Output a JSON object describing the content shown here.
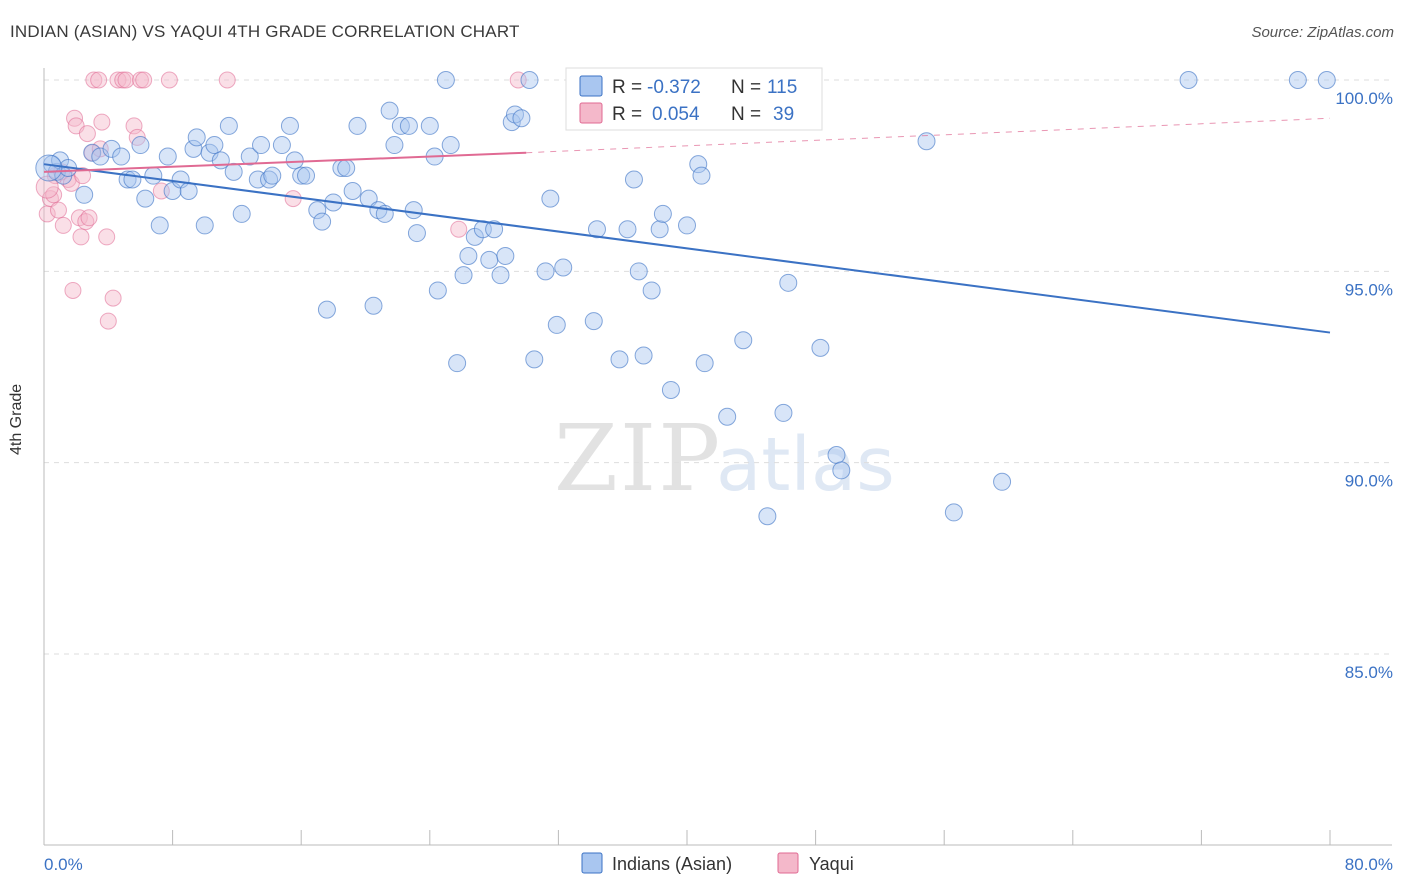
{
  "title": "INDIAN (ASIAN) VS YAQUI 4TH GRADE CORRELATION CHART",
  "source": "Source: ZipAtlas.com",
  "watermark": {
    "zip": "ZIP",
    "atlas": "atlas"
  },
  "colors": {
    "blue": "#3b72c4",
    "blue_fill": "#a9c6f0",
    "pink": "#e06a93",
    "pink_fill": "#f4b8ca",
    "grid": "#dddddd"
  },
  "legend": {
    "rows": [
      {
        "r_label": "R =",
        "r_value": "-0.372",
        "n_label": "N =",
        "n_value": "115"
      },
      {
        "r_label": "R =",
        "r_value": "0.054",
        "n_label": "N =",
        "n_value": "39"
      }
    ]
  },
  "chart_data": {
    "type": "scatter",
    "title": "INDIAN (ASIAN) VS YAQUI 4TH GRADE CORRELATION CHART",
    "xlabel": "",
    "ylabel": "4th Grade",
    "xlim": [
      0,
      80
    ],
    "ylim": [
      80.5,
      100.8
    ],
    "x_tick_labels": [
      "0.0%",
      "80.0%"
    ],
    "y_ticks": [
      85,
      90,
      95,
      100
    ],
    "y_tick_labels": [
      "85.0%",
      "90.0%",
      "95.0%",
      "100.0%"
    ],
    "legend_position": "top-center",
    "series": [
      {
        "name": "Indians (Asian)",
        "color": "#3b72c4",
        "r": -0.372,
        "n": 115,
        "trend": {
          "x": [
            0,
            80
          ],
          "y": [
            97.8,
            93.4
          ],
          "dashed_after": null
        },
        "points": [
          [
            0.5,
            97.8
          ],
          [
            0.8,
            97.6
          ],
          [
            1.0,
            97.9
          ],
          [
            1.2,
            97.5
          ],
          [
            1.5,
            97.7
          ],
          [
            2.5,
            97.0
          ],
          [
            3.0,
            98.1
          ],
          [
            3.5,
            98.0
          ],
          [
            4.2,
            98.2
          ],
          [
            4.8,
            98.0
          ],
          [
            5.2,
            97.4
          ],
          [
            5.5,
            97.4
          ],
          [
            6.0,
            98.3
          ],
          [
            6.3,
            96.9
          ],
          [
            6.8,
            97.5
          ],
          [
            7.2,
            96.2
          ],
          [
            7.7,
            98.0
          ],
          [
            8.0,
            97.1
          ],
          [
            8.5,
            97.4
          ],
          [
            9.0,
            97.1
          ],
          [
            9.3,
            98.2
          ],
          [
            9.5,
            98.5
          ],
          [
            10.0,
            96.2
          ],
          [
            10.3,
            98.1
          ],
          [
            10.6,
            98.3
          ],
          [
            11.0,
            97.9
          ],
          [
            11.5,
            98.8
          ],
          [
            11.8,
            97.6
          ],
          [
            12.3,
            96.5
          ],
          [
            12.8,
            98.0
          ],
          [
            13.3,
            97.4
          ],
          [
            13.5,
            98.3
          ],
          [
            14.0,
            97.4
          ],
          [
            14.2,
            97.5
          ],
          [
            14.8,
            98.3
          ],
          [
            15.3,
            98.8
          ],
          [
            15.6,
            97.9
          ],
          [
            16.0,
            97.5
          ],
          [
            16.3,
            97.5
          ],
          [
            17.0,
            96.6
          ],
          [
            17.3,
            96.3
          ],
          [
            17.6,
            94.0
          ],
          [
            18.0,
            96.8
          ],
          [
            18.5,
            97.7
          ],
          [
            18.8,
            97.7
          ],
          [
            19.2,
            97.1
          ],
          [
            19.5,
            98.8
          ],
          [
            20.2,
            96.9
          ],
          [
            20.5,
            94.1
          ],
          [
            20.8,
            96.6
          ],
          [
            21.2,
            96.5
          ],
          [
            21.5,
            99.2
          ],
          [
            21.8,
            98.3
          ],
          [
            22.2,
            98.8
          ],
          [
            22.7,
            98.8
          ],
          [
            23.0,
            96.6
          ],
          [
            23.2,
            96.0
          ],
          [
            24.0,
            98.8
          ],
          [
            24.3,
            98.0
          ],
          [
            24.5,
            94.5
          ],
          [
            25.0,
            100.0
          ],
          [
            25.3,
            98.3
          ],
          [
            25.7,
            92.6
          ],
          [
            26.1,
            94.9
          ],
          [
            26.4,
            95.4
          ],
          [
            26.8,
            95.9
          ],
          [
            27.3,
            96.1
          ],
          [
            27.7,
            95.3
          ],
          [
            28.0,
            96.1
          ],
          [
            28.4,
            94.9
          ],
          [
            28.7,
            95.4
          ],
          [
            29.1,
            98.9
          ],
          [
            29.3,
            99.1
          ],
          [
            29.7,
            99.0
          ],
          [
            30.2,
            100.0
          ],
          [
            30.5,
            92.7
          ],
          [
            31.2,
            95.0
          ],
          [
            31.5,
            96.9
          ],
          [
            31.9,
            93.6
          ],
          [
            32.3,
            95.1
          ],
          [
            34.2,
            93.7
          ],
          [
            34.4,
            96.1
          ],
          [
            35.8,
            92.7
          ],
          [
            36.3,
            96.1
          ],
          [
            36.7,
            97.4
          ],
          [
            37.0,
            95.0
          ],
          [
            37.3,
            92.8
          ],
          [
            37.8,
            94.5
          ],
          [
            38.3,
            96.1
          ],
          [
            38.5,
            96.5
          ],
          [
            39.0,
            91.9
          ],
          [
            40.0,
            96.2
          ],
          [
            40.7,
            97.8
          ],
          [
            40.9,
            97.5
          ],
          [
            41.1,
            92.6
          ],
          [
            42.5,
            91.2
          ],
          [
            43.5,
            93.2
          ],
          [
            45.0,
            88.6
          ],
          [
            46.0,
            91.3
          ],
          [
            46.3,
            94.7
          ],
          [
            47.3,
            100.0
          ],
          [
            48.3,
            93.0
          ],
          [
            49.3,
            90.2
          ],
          [
            49.6,
            89.8
          ],
          [
            54.9,
            98.4
          ],
          [
            56.6,
            88.7
          ],
          [
            59.6,
            89.5
          ],
          [
            71.2,
            100.0
          ],
          [
            78.0,
            100.0
          ],
          [
            79.8,
            100.0
          ]
        ]
      },
      {
        "name": "Yaqui",
        "color": "#e06a93",
        "r": 0.054,
        "n": 39,
        "trend": {
          "x": [
            0,
            30,
            80
          ],
          "y": [
            97.6,
            98.1,
            99.0
          ],
          "solid_until": 30
        },
        "points": [
          [
            0.2,
            96.5
          ],
          [
            0.4,
            96.9
          ],
          [
            0.6,
            97.0
          ],
          [
            0.7,
            97.5
          ],
          [
            0.9,
            96.6
          ],
          [
            1.1,
            97.6
          ],
          [
            1.2,
            96.2
          ],
          [
            1.5,
            97.4
          ],
          [
            1.7,
            97.3
          ],
          [
            1.8,
            94.5
          ],
          [
            1.9,
            99.0
          ],
          [
            2.0,
            98.8
          ],
          [
            2.2,
            96.4
          ],
          [
            2.3,
            95.9
          ],
          [
            2.4,
            97.5
          ],
          [
            2.6,
            96.3
          ],
          [
            2.7,
            98.6
          ],
          [
            2.8,
            96.4
          ],
          [
            3.0,
            98.1
          ],
          [
            3.1,
            100.0
          ],
          [
            3.4,
            100.0
          ],
          [
            3.5,
            98.2
          ],
          [
            3.6,
            98.9
          ],
          [
            3.9,
            95.9
          ],
          [
            4.0,
            93.7
          ],
          [
            4.3,
            94.3
          ],
          [
            4.6,
            100.0
          ],
          [
            4.9,
            100.0
          ],
          [
            5.1,
            100.0
          ],
          [
            5.6,
            98.8
          ],
          [
            5.8,
            98.5
          ],
          [
            6.0,
            100.0
          ],
          [
            6.2,
            100.0
          ],
          [
            7.3,
            97.1
          ],
          [
            7.8,
            100.0
          ],
          [
            11.4,
            100.0
          ],
          [
            15.5,
            96.9
          ],
          [
            25.8,
            96.1
          ],
          [
            29.5,
            100.0
          ]
        ]
      }
    ]
  }
}
